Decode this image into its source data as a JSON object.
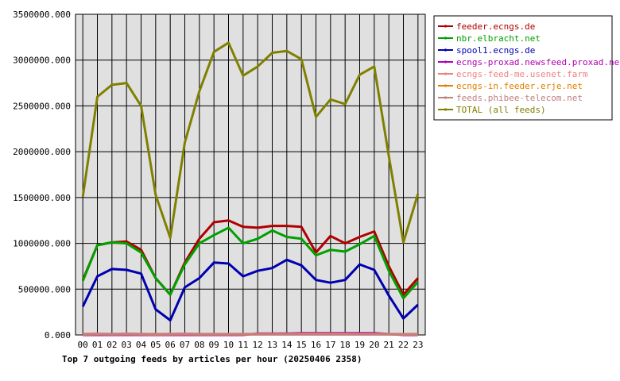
{
  "chart_data": {
    "type": "line",
    "title": "Top 7 outgoing feeds by articles per hour (20250406 2358)",
    "xlabel": "",
    "ylabel": "",
    "ylim": [
      0,
      3500000
    ],
    "grid": true,
    "legend_position": "top-right",
    "y_ticks": [
      "0.000",
      "500000.000",
      "1000000.000",
      "1500000.000",
      "2000000.000",
      "2500000.000",
      "3000000.000",
      "3500000.000"
    ],
    "categories": [
      "00",
      "01",
      "02",
      "03",
      "04",
      "05",
      "06",
      "07",
      "08",
      "09",
      "10",
      "11",
      "12",
      "13",
      "14",
      "15",
      "16",
      "17",
      "18",
      "19",
      "20",
      "21",
      "22",
      "23"
    ],
    "series": [
      {
        "name": "feeder.ecngs.de",
        "color": "#b00000",
        "values": [
          600000,
          980000,
          1010000,
          1020000,
          930000,
          620000,
          440000,
          790000,
          1050000,
          1230000,
          1250000,
          1180000,
          1170000,
          1190000,
          1190000,
          1180000,
          900000,
          1080000,
          1000000,
          1070000,
          1130000,
          750000,
          440000,
          620000
        ]
      },
      {
        "name": "nbr.elbracht.net",
        "color": "#00a000",
        "values": [
          590000,
          980000,
          1010000,
          1000000,
          900000,
          620000,
          440000,
          770000,
          1000000,
          1090000,
          1170000,
          1000000,
          1050000,
          1140000,
          1070000,
          1050000,
          870000,
          930000,
          910000,
          990000,
          1080000,
          700000,
          400000,
          580000
        ]
      },
      {
        "name": "spool1.ecngs.de",
        "color": "#0000b0",
        "values": [
          310000,
          640000,
          720000,
          710000,
          670000,
          280000,
          160000,
          520000,
          620000,
          790000,
          780000,
          640000,
          700000,
          730000,
          820000,
          760000,
          600000,
          570000,
          600000,
          770000,
          710000,
          430000,
          180000,
          330000
        ]
      },
      {
        "name": "ecngs-proxad.newsfeed.proxad.net",
        "color": "#b000b0",
        "values": [
          0,
          0,
          0,
          0,
          0,
          0,
          0,
          0,
          0,
          0,
          0,
          0,
          15000,
          15000,
          15000,
          20000,
          20000,
          20000,
          20000,
          20000,
          20000,
          10000,
          0,
          0
        ]
      },
      {
        "name": "ecngs-feed-me.usenet.farm",
        "color": "#f08080",
        "values": [
          10000,
          15000,
          10000,
          15000,
          12000,
          10000,
          12000,
          15000,
          10000,
          10000,
          10000,
          10000,
          10000,
          10000,
          10000,
          12000,
          12000,
          12000,
          12000,
          10000,
          10000,
          10000,
          10000,
          10000
        ]
      },
      {
        "name": "ecngs-in.feeder.erje.net",
        "color": "#e08000",
        "values": [
          5000,
          8000,
          6000,
          8000,
          6000,
          5000,
          6000,
          8000,
          6000,
          6000,
          6000,
          6000,
          6000,
          6000,
          6000,
          6000,
          6000,
          6000,
          6000,
          6000,
          6000,
          6000,
          5000,
          5000
        ]
      },
      {
        "name": "feeds.phibee-telecom.net",
        "color": "#c08080",
        "values": [
          5000,
          8000,
          6000,
          8000,
          6000,
          5000,
          6000,
          8000,
          6000,
          6000,
          6000,
          6000,
          6000,
          6000,
          6000,
          6000,
          6000,
          6000,
          6000,
          6000,
          6000,
          6000,
          5000,
          5000
        ]
      },
      {
        "name": "TOTAL (all feeds)",
        "color": "#808000",
        "values": [
          1510000,
          2600000,
          2730000,
          2750000,
          2500000,
          1530000,
          1060000,
          2100000,
          2660000,
          3090000,
          3190000,
          2830000,
          2930000,
          3080000,
          3100000,
          3010000,
          2380000,
          2570000,
          2520000,
          2840000,
          2930000,
          1950000,
          1010000,
          1540000
        ]
      }
    ]
  }
}
